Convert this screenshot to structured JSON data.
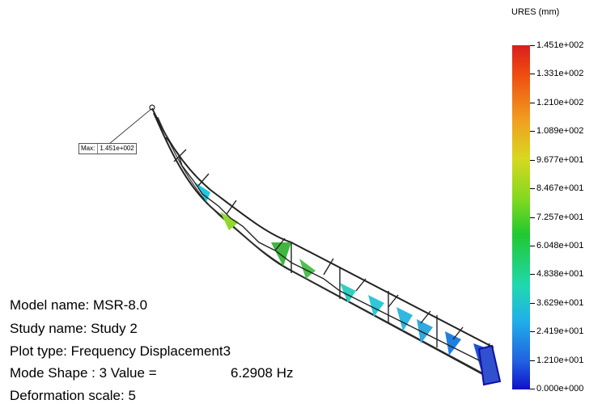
{
  "legend": {
    "title": "URES (mm)",
    "ticks": [
      "1.451e+002",
      "1.331e+002",
      "1.210e+002",
      "1.089e+002",
      "9.677e+001",
      "8.467e+001",
      "7.257e+001",
      "6.048e+001",
      "4.838e+001",
      "3.629e+001",
      "2.419e+001",
      "1.210e+001",
      "0.000e+000"
    ]
  },
  "max_label": {
    "prefix": "Max:",
    "value": "1.451e+002"
  },
  "info": {
    "model": "Model name: MSR-8.0",
    "study": "Study name: Study 2",
    "plot_type": "Plot type: Frequency Displacement3",
    "mode_shape": "Mode Shape : 3  Value =",
    "mode_value": "6.2908 Hz",
    "deformation": "Deformation scale: 5"
  }
}
